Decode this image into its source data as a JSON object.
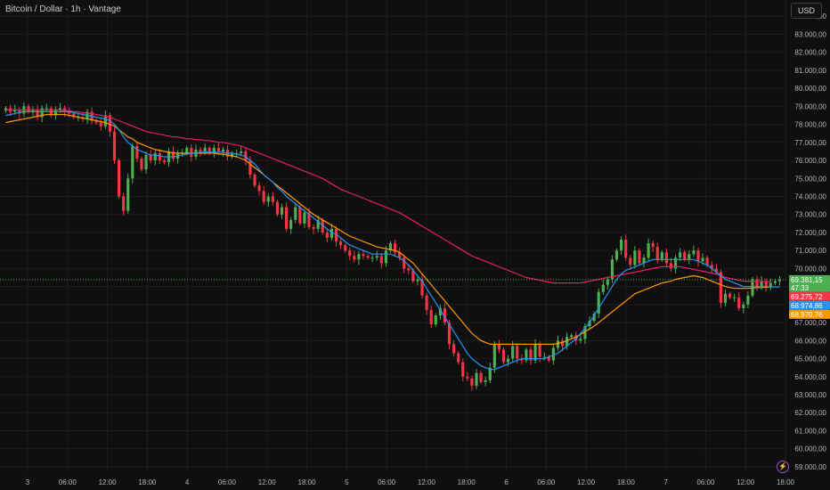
{
  "header": {
    "title": "Bitcoin / Dollar · 1h · Vantage",
    "currency": "USD"
  },
  "icons": {
    "bolt": "lightning-icon"
  },
  "colors": {
    "bg": "#0f0f0f",
    "up": "#4caf50",
    "down": "#f23645",
    "grid": "#1c1c1c",
    "ma_fast": "#2196f3",
    "ma_mid": "#ff9800",
    "ma_slow": "#e91e63"
  },
  "chart_data": {
    "type": "candlestick",
    "ylim": [
      58700,
      84900
    ],
    "y_ticks": [
      59000,
      60000,
      61000,
      62000,
      63000,
      64000,
      65000,
      66000,
      67000,
      68000,
      69000,
      70000,
      71000,
      72000,
      73000,
      74000,
      75000,
      76000,
      77000,
      78000,
      79000,
      80000,
      81000,
      82000,
      83000,
      84000
    ],
    "y_tick_labels": [
      "59.000,00",
      "60.000,00",
      "61.000,00",
      "62.000,00",
      "63.000,00",
      "64.000,00",
      "65.000,00",
      "66.000,00",
      "67.000,00",
      "68.000,00",
      "69.000,00",
      "70.000,00",
      "71.000,00",
      "72.000,00",
      "73.000,00",
      "74.000,00",
      "75.000,00",
      "76.000,00",
      "77.000,00",
      "78.000,00",
      "79.000,00",
      "80.000,00",
      "81.000,00",
      "82.000,00",
      "83.000,00",
      "84.000,00"
    ],
    "x_ticks": [
      "3",
      "06:00",
      "12:00",
      "18:00",
      "4",
      "06:00",
      "12:00",
      "18:00",
      "5",
      "06:00",
      "12:00",
      "18:00",
      "6",
      "06:00",
      "12:00",
      "18:00",
      "7",
      "06:00",
      "12:00",
      "18:00"
    ],
    "price_labels": [
      {
        "text": "69.381,15",
        "sub": "47:33",
        "color": "#4caf50",
        "value": 69381.15
      },
      {
        "text": "69.275,72",
        "color": "#f23645",
        "value": 69275.72
      },
      {
        "text": "68.974,86",
        "color": "#2196f3",
        "value": 68974.86
      },
      {
        "text": "68.970,76",
        "color": "#ff9800",
        "value": 68970.76
      }
    ],
    "price_line": 69381.15,
    "close": [
      78900,
      78700,
      78800,
      78600,
      79000,
      78700,
      78800,
      78400,
      78900,
      78900,
      78500,
      78800,
      78900,
      78700,
      78600,
      78400,
      78400,
      78300,
      78700,
      78200,
      78100,
      77900,
      78500,
      77600,
      76000,
      74000,
      73200,
      75000,
      76800,
      76100,
      75500,
      76300,
      76000,
      76400,
      76000,
      75900,
      76500,
      76100,
      76400,
      76400,
      76700,
      76200,
      76600,
      76500,
      76700,
      76400,
      76700,
      76500,
      76600,
      76200,
      76400,
      76400,
      76500,
      76000,
      75200,
      74600,
      74300,
      73700,
      74000,
      73700,
      73000,
      73400,
      72200,
      72700,
      73400,
      72500,
      73100,
      72300,
      72200,
      72700,
      72000,
      71700,
      72200,
      71500,
      71300,
      71000,
      70700,
      70500,
      70800,
      70700,
      70600,
      70600,
      70700,
      70300,
      71000,
      71400,
      70900,
      70600,
      70000,
      69900,
      69300,
      69400,
      68500,
      67700,
      66900,
      67400,
      67800,
      67000,
      65800,
      65300,
      64800,
      64000,
      63900,
      63500,
      64200,
      63700,
      63800,
      64500,
      65800,
      65500,
      64800,
      65000,
      65700,
      65000,
      64900,
      65500,
      64900,
      65800,
      65100,
      65100,
      64900,
      65600,
      66000,
      65700,
      66200,
      66300,
      66000,
      66100,
      66800,
      67100,
      67500,
      68700,
      69100,
      69400,
      70500,
      71000,
      71600,
      70600,
      70200,
      71000,
      70300,
      70600,
      71400,
      71200,
      70500,
      70900,
      70300,
      70000,
      70600,
      70900,
      70500,
      70800,
      71000,
      70400,
      70600,
      70200,
      70000,
      69800,
      68100,
      68600,
      68400,
      68400,
      67800,
      68000,
      68500,
      69400,
      69000,
      69300,
      69000,
      69200,
      69300,
      69381
    ],
    "ma_fast": [
      78500,
      78550,
      78600,
      78650,
      78700,
      78700,
      78700,
      78700,
      78700,
      78700,
      78700,
      78700,
      78700,
      78700,
      78700,
      78650,
      78600,
      78550,
      78500,
      78450,
      78400,
      78350,
      78300,
      78200,
      78000,
      77700,
      77300,
      77000,
      76800,
      76600,
      76500,
      76400,
      76300,
      76300,
      76250,
      76200,
      76200,
      76200,
      76250,
      76300,
      76350,
      76400,
      76400,
      76450,
      76450,
      76450,
      76450,
      76450,
      76450,
      76400,
      76400,
      76350,
      76300,
      76200,
      76000,
      75800,
      75500,
      75200,
      75000,
      74800,
      74500,
      74300,
      74000,
      73800,
      73600,
      73400,
      73200,
      73000,
      72800,
      72600,
      72400,
      72200,
      72000,
      71900,
      71700,
      71500,
      71300,
      71200,
      71100,
      71000,
      70900,
      70800,
      70800,
      70800,
      70800,
      70800,
      70700,
      70600,
      70400,
      70200,
      69900,
      69600,
      69300,
      68900,
      68500,
      68100,
      67700,
      67300,
      66900,
      66500,
      66100,
      65700,
      65300,
      65000,
      64800,
      64600,
      64500,
      64400,
      64400,
      64500,
      64600,
      64700,
      64800,
      64900,
      65000,
      65000,
      65000,
      65000,
      65000,
      65000,
      65100,
      65200,
      65300,
      65500,
      65700,
      65900,
      66100,
      66400,
      66700,
      67000,
      67400,
      67800,
      68200,
      68600,
      69000,
      69400,
      69700,
      69900,
      70000,
      70100,
      70200,
      70300,
      70400,
      70500,
      70500,
      70500,
      70500,
      70500,
      70500,
      70500,
      70500,
      70500,
      70500,
      70400,
      70300,
      70200,
      70000,
      69800,
      69600,
      69400,
      69300,
      69200,
      69100,
      69000,
      69000,
      69000,
      69000,
      69000,
      68990,
      68980,
      68975,
      68975
    ],
    "ma_mid": [
      78100,
      78150,
      78200,
      78250,
      78300,
      78350,
      78400,
      78450,
      78500,
      78550,
      78550,
      78550,
      78550,
      78550,
      78500,
      78450,
      78400,
      78350,
      78300,
      78250,
      78200,
      78150,
      78100,
      78000,
      77900,
      77700,
      77500,
      77300,
      77200,
      77000,
      76900,
      76800,
      76700,
      76600,
      76550,
      76500,
      76450,
      76400,
      76400,
      76400,
      76400,
      76400,
      76400,
      76400,
      76400,
      76400,
      76400,
      76350,
      76350,
      76300,
      76250,
      76200,
      76100,
      76000,
      75800,
      75600,
      75400,
      75200,
      75000,
      74800,
      74600,
      74400,
      74200,
      74000,
      73800,
      73600,
      73400,
      73200,
      73000,
      72850,
      72700,
      72550,
      72400,
      72250,
      72100,
      71950,
      71800,
      71700,
      71600,
      71500,
      71400,
      71300,
      71200,
      71150,
      71100,
      71050,
      71000,
      70900,
      70700,
      70500,
      70300,
      70000,
      69700,
      69400,
      69100,
      68800,
      68500,
      68200,
      67900,
      67600,
      67300,
      67000,
      66700,
      66400,
      66200,
      66000,
      65900,
      65800,
      65800,
      65800,
      65800,
      65800,
      65800,
      65800,
      65800,
      65800,
      65800,
      65800,
      65800,
      65800,
      65800,
      65800,
      65850,
      65900,
      66000,
      66100,
      66200,
      66350,
      66500,
      66650,
      66800,
      67000,
      67200,
      67400,
      67600,
      67800,
      68000,
      68200,
      68400,
      68600,
      68700,
      68800,
      68900,
      69000,
      69100,
      69200,
      69250,
      69300,
      69400,
      69450,
      69500,
      69550,
      69600,
      69550,
      69500,
      69400,
      69300,
      69200,
      69100,
      69000,
      68950,
      68900,
      68900,
      68900,
      68900,
      68920,
      68940,
      68950,
      68960,
      68970
    ],
    "ma_slow": [
      78800,
      78800,
      78800,
      78800,
      78800,
      78800,
      78800,
      78800,
      78800,
      78800,
      78800,
      78800,
      78800,
      78750,
      78750,
      78700,
      78700,
      78650,
      78600,
      78600,
      78550,
      78500,
      78450,
      78400,
      78300,
      78200,
      78100,
      78000,
      77900,
      77800,
      77700,
      77600,
      77550,
      77500,
      77450,
      77400,
      77350,
      77300,
      77300,
      77250,
      77200,
      77200,
      77150,
      77150,
      77100,
      77100,
      77050,
      77000,
      77000,
      76950,
      76900,
      76850,
      76800,
      76700,
      76600,
      76500,
      76400,
      76300,
      76200,
      76100,
      76000,
      75900,
      75800,
      75700,
      75600,
      75500,
      75400,
      75300,
      75200,
      75100,
      75000,
      74850,
      74700,
      74550,
      74400,
      74300,
      74200,
      74100,
      74000,
      73900,
      73800,
      73700,
      73600,
      73500,
      73400,
      73300,
      73200,
      73100,
      72950,
      72800,
      72650,
      72500,
      72350,
      72200,
      72050,
      71900,
      71750,
      71600,
      71450,
      71300,
      71150,
      71000,
      70850,
      70700,
      70600,
      70500,
      70400,
      70300,
      70200,
      70100,
      70000,
      69900,
      69800,
      69700,
      69600,
      69500,
      69450,
      69400,
      69350,
      69300,
      69250,
      69200,
      69200,
      69200,
      69200,
      69200,
      69200,
      69200,
      69250,
      69300,
      69350,
      69400,
      69450,
      69500,
      69550,
      69600,
      69650,
      69700,
      69750,
      69800,
      69850,
      69900,
      69950,
      70000,
      70050,
      70100,
      70100,
      70100,
      70100,
      70100,
      70050,
      70000,
      69950,
      69900,
      69850,
      69800,
      69750,
      69700,
      69600,
      69500,
      69450,
      69400,
      69350,
      69300,
      69300,
      69300,
      69290,
      69280,
      69280,
      69275
    ]
  }
}
